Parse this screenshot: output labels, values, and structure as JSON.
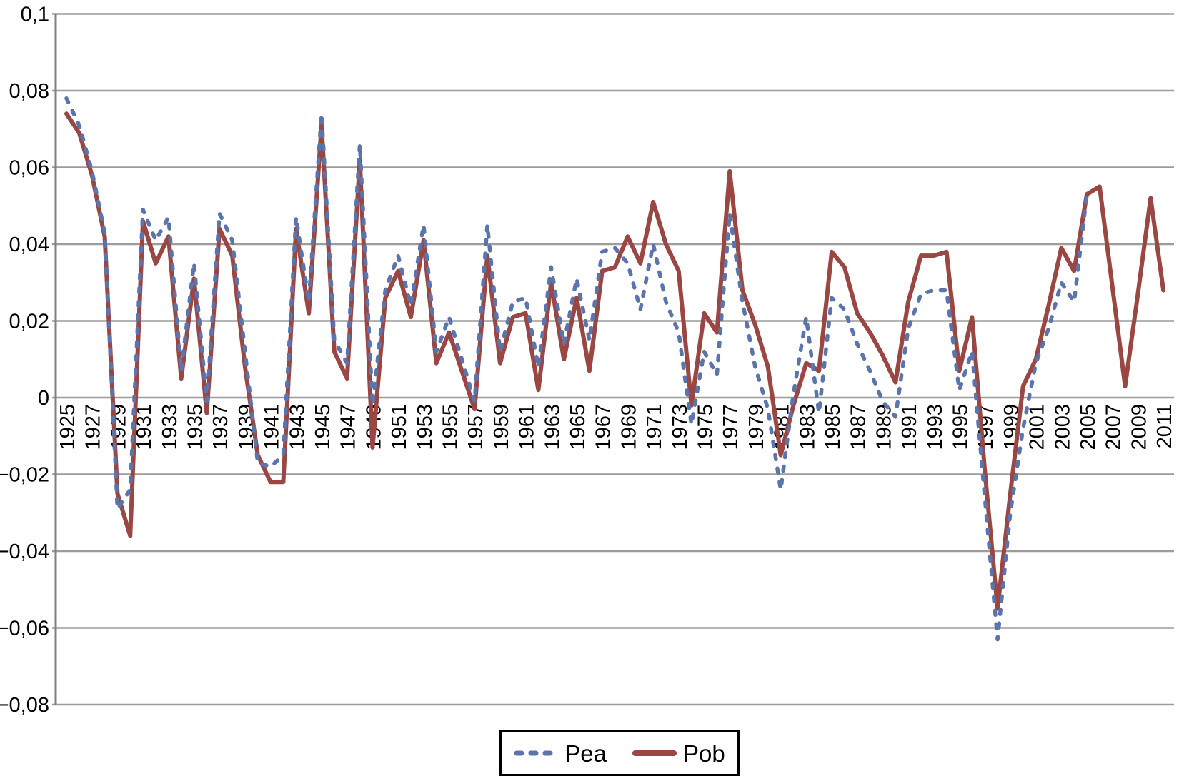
{
  "chart_data": {
    "type": "line",
    "title": "",
    "xlabel": "",
    "ylabel": "",
    "grid": true,
    "legend_position": "bottom",
    "decimal_style": "comma",
    "ylim": [
      -0.08,
      0.1
    ],
    "yticks": [
      {
        "v": 0.1,
        "label": "0,1"
      },
      {
        "v": 0.08,
        "label": "0,08"
      },
      {
        "v": 0.06,
        "label": "0,06"
      },
      {
        "v": 0.04,
        "label": "0,04"
      },
      {
        "v": 0.02,
        "label": "0,02"
      },
      {
        "v": 0.0,
        "label": "0"
      },
      {
        "v": -0.02,
        "label": "−0,02"
      },
      {
        "v": -0.04,
        "label": "−0,04"
      },
      {
        "v": -0.06,
        "label": "−0,06"
      },
      {
        "v": -0.08,
        "label": "−0,08"
      }
    ],
    "xticks": [
      1925,
      1927,
      1929,
      1931,
      1933,
      1935,
      1937,
      1939,
      1941,
      1943,
      1945,
      1947,
      1949,
      1951,
      1953,
      1955,
      1957,
      1959,
      1961,
      1963,
      1965,
      1967,
      1969,
      1971,
      1973,
      1975,
      1977,
      1979,
      1981,
      1983,
      1985,
      1987,
      1989,
      1991,
      1993,
      1995,
      1997,
      1999,
      2001,
      2003,
      2005,
      2007,
      2009,
      2011
    ],
    "x": [
      1925,
      1926,
      1927,
      1928,
      1929,
      1930,
      1931,
      1932,
      1933,
      1934,
      1935,
      1936,
      1937,
      1938,
      1939,
      1940,
      1941,
      1942,
      1943,
      1944,
      1945,
      1946,
      1947,
      1948,
      1949,
      1950,
      1951,
      1952,
      1953,
      1954,
      1955,
      1956,
      1957,
      1958,
      1959,
      1960,
      1961,
      1962,
      1963,
      1964,
      1965,
      1966,
      1967,
      1968,
      1969,
      1970,
      1971,
      1972,
      1973,
      1974,
      1975,
      1976,
      1977,
      1978,
      1979,
      1980,
      1981,
      1982,
      1983,
      1984,
      1985,
      1986,
      1987,
      1988,
      1989,
      1990,
      1991,
      1992,
      1993,
      1994,
      1995,
      1996,
      1997,
      1998,
      1999,
      2000,
      2001,
      2002,
      2003,
      2004,
      2005,
      2006,
      2007,
      2008,
      2009,
      2010,
      2011
    ],
    "series": [
      {
        "name": "Pea",
        "style": "dashed",
        "color": "#5B74AC",
        "values": [
          0.078,
          0.071,
          0.059,
          0.043,
          -0.029,
          -0.024,
          0.049,
          0.041,
          0.047,
          0.007,
          0.035,
          -0.001,
          0.048,
          0.041,
          0.012,
          -0.017,
          -0.018,
          -0.015,
          0.047,
          0.025,
          0.074,
          0.015,
          0.009,
          0.066,
          -0.002,
          0.028,
          0.037,
          0.024,
          0.045,
          0.012,
          0.021,
          0.01,
          -0.001,
          0.045,
          0.012,
          0.025,
          0.026,
          0.008,
          0.034,
          0.014,
          0.031,
          0.015,
          0.038,
          0.039,
          0.035,
          0.023,
          0.04,
          0.025,
          0.017,
          -0.007,
          0.012,
          0.006,
          0.048,
          0.025,
          0.008,
          -0.003,
          -0.024,
          0.001,
          0.021,
          -0.004,
          0.026,
          0.023,
          0.014,
          0.007,
          -0.001,
          -0.005,
          0.018,
          0.027,
          0.028,
          0.028,
          0.002,
          0.012,
          -0.026,
          -0.063,
          -0.03,
          -0.008,
          0.009,
          0.018,
          0.03,
          0.025,
          0.053,
          null,
          null,
          null,
          null,
          null,
          null
        ]
      },
      {
        "name": "Pob",
        "style": "solid",
        "color": "#9A4642",
        "values": [
          0.074,
          0.069,
          0.058,
          0.042,
          -0.025,
          -0.036,
          0.046,
          0.035,
          0.042,
          0.005,
          0.031,
          -0.004,
          0.044,
          0.037,
          0.008,
          -0.015,
          -0.022,
          -0.022,
          0.044,
          0.022,
          0.071,
          0.012,
          0.005,
          0.062,
          -0.013,
          0.026,
          0.033,
          0.021,
          0.041,
          0.009,
          0.017,
          0.007,
          -0.003,
          0.037,
          0.009,
          0.021,
          0.022,
          0.002,
          0.03,
          0.01,
          0.026,
          0.007,
          0.033,
          0.034,
          0.042,
          0.035,
          0.051,
          0.04,
          0.033,
          -0.002,
          0.022,
          0.017,
          0.059,
          0.028,
          0.019,
          0.008,
          -0.015,
          -0.002,
          0.009,
          0.007,
          0.038,
          0.034,
          0.022,
          0.017,
          0.011,
          0.004,
          0.025,
          0.037,
          0.037,
          0.038,
          0.007,
          0.021,
          -0.019,
          -0.055,
          -0.025,
          0.003,
          0.01,
          0.024,
          0.039,
          0.033,
          0.053,
          0.055,
          0.029,
          0.003,
          0.027,
          0.052,
          0.028
        ]
      }
    ],
    "axis_colors": {
      "gridline": "#9C9C9C",
      "spine": "#7F7F7F",
      "text": "#000000"
    }
  },
  "legend": {
    "items": [
      {
        "label": "Pea"
      },
      {
        "label": "Pob"
      }
    ]
  }
}
